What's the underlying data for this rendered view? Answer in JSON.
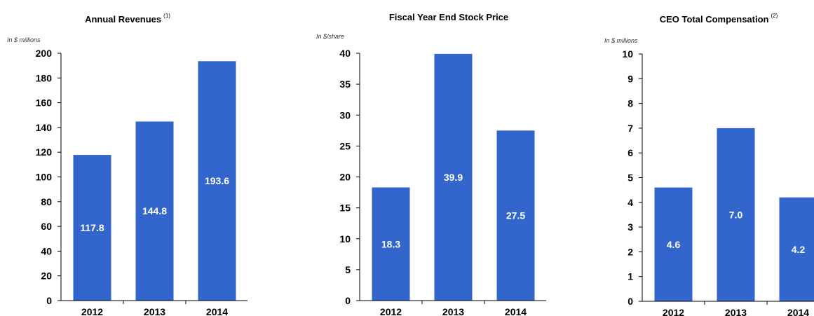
{
  "chart_data": [
    {
      "type": "bar",
      "title": "Annual Revenues",
      "title_note": "(1)",
      "unit_label": "In $ millions",
      "categories": [
        "2012",
        "2013",
        "2014"
      ],
      "values": [
        117.8,
        144.8,
        193.6
      ],
      "value_labels": [
        "117.8",
        "144.8",
        "193.6"
      ],
      "ylim": [
        0,
        200
      ],
      "yticks": [
        0,
        20,
        40,
        60,
        80,
        100,
        120,
        140,
        160,
        180,
        200
      ],
      "grid": false,
      "bar_color": "#3366cc"
    },
    {
      "type": "bar",
      "title": "Fiscal Year End Stock Price",
      "title_note": "",
      "unit_label": "In $/share",
      "categories": [
        "2012",
        "2013",
        "2014"
      ],
      "values": [
        18.3,
        39.9,
        27.5
      ],
      "value_labels": [
        "18.3",
        "39.9",
        "27.5"
      ],
      "ylim": [
        0,
        40
      ],
      "yticks": [
        0,
        5,
        10,
        15,
        20,
        25,
        30,
        35,
        40
      ],
      "grid": false,
      "bar_color": "#3366cc"
    },
    {
      "type": "bar",
      "title": "CEO Total Compensation",
      "title_note": "(2)",
      "unit_label": "In $ millions",
      "categories": [
        "2012",
        "2013",
        "2014"
      ],
      "values": [
        4.6,
        7.0,
        4.2
      ],
      "value_labels": [
        "4.6",
        "7.0",
        "4.2"
      ],
      "ylim": [
        0,
        10
      ],
      "yticks": [
        0,
        1,
        2,
        3,
        4,
        5,
        6,
        7,
        8,
        9,
        10
      ],
      "grid": false,
      "bar_color": "#3366cc"
    }
  ]
}
